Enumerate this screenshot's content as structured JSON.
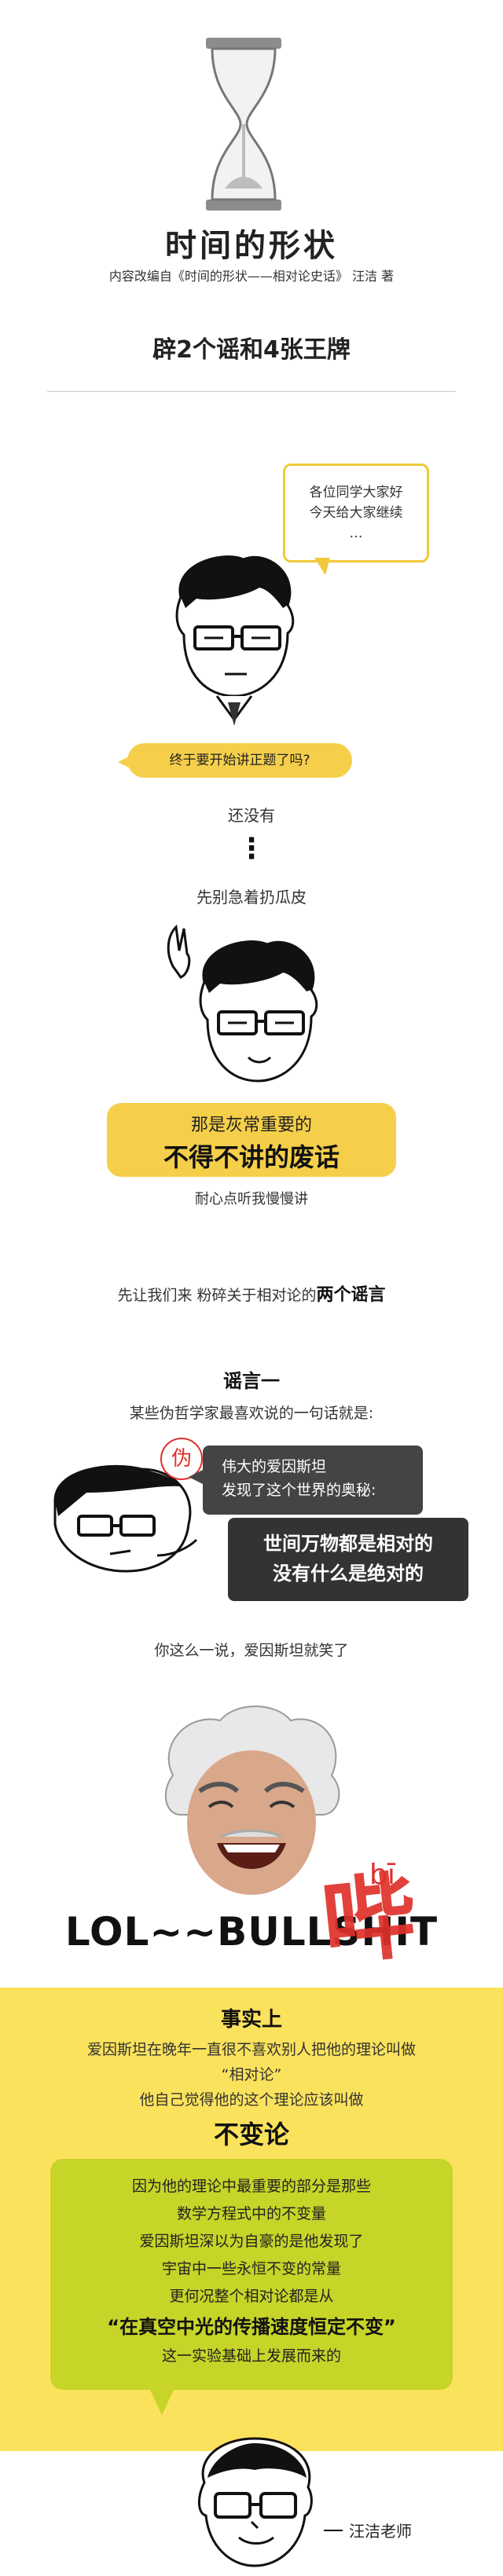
{
  "header": {
    "title": "时间的形状",
    "subtitle": "内容改编自《时间的形状——相对论史话》 汪洁 著",
    "section_title": "辟2个谣和4张王牌"
  },
  "intro": {
    "greeting": "各位同学大家好\n今天给大家继续\n…",
    "question": "终于要开始讲正题了吗?",
    "line1": "还没有",
    "ellipsis": "⋮",
    "line2": "先别急着扔瓜皮",
    "highlight_small": "那是灰常重要的",
    "highlight_big": "不得不讲的废话",
    "patience": "耐心点听我慢慢讲",
    "lead_prefix": "先让我们来 粉碎关于相对论的",
    "lead_bold": "两个谣言"
  },
  "rumor": {
    "heading": "谣言一",
    "intro": "某些伪哲学家最喜欢说的一句话就是:",
    "fake_badge": "伪",
    "quote_small": "伟大的爱因斯坦\n发现了这个世界的奥秘:",
    "quote_big": "世间万物都是相对的\n没有什么是绝对的",
    "reaction": "你这么一说，爱因斯坦就笑了"
  },
  "meme": {
    "text": "LOL~~BULLSHIT",
    "pinyin": "bī",
    "hanzi": "哔"
  },
  "fact": {
    "heading": "事实上",
    "line1": "爱因斯坦在晚年一直很不喜欢别人把他的理论叫做",
    "line2": "“相对论”",
    "line3": "他自己觉得他的这个理论应该叫做",
    "big": "不变论"
  },
  "explain": {
    "lines": [
      "因为他的理论中最重要的部分是那些",
      "数学方程式中的不变量",
      "爱因斯坦深以为自豪的是他发现了",
      "宇宙中一些永恒不变的常量",
      "更何况整个相对论都是从"
    ],
    "big": "“在真空中光的传播速度恒定不变”",
    "last": "这一实验基础上发展而来的"
  },
  "teacher": {
    "label": "汪洁老师"
  },
  "colors": {
    "yellow": "#f6cf4a",
    "hero_yellow": "#fbe25c",
    "green": "#c7d428",
    "dark": "#444444",
    "red": "#e0312b"
  }
}
